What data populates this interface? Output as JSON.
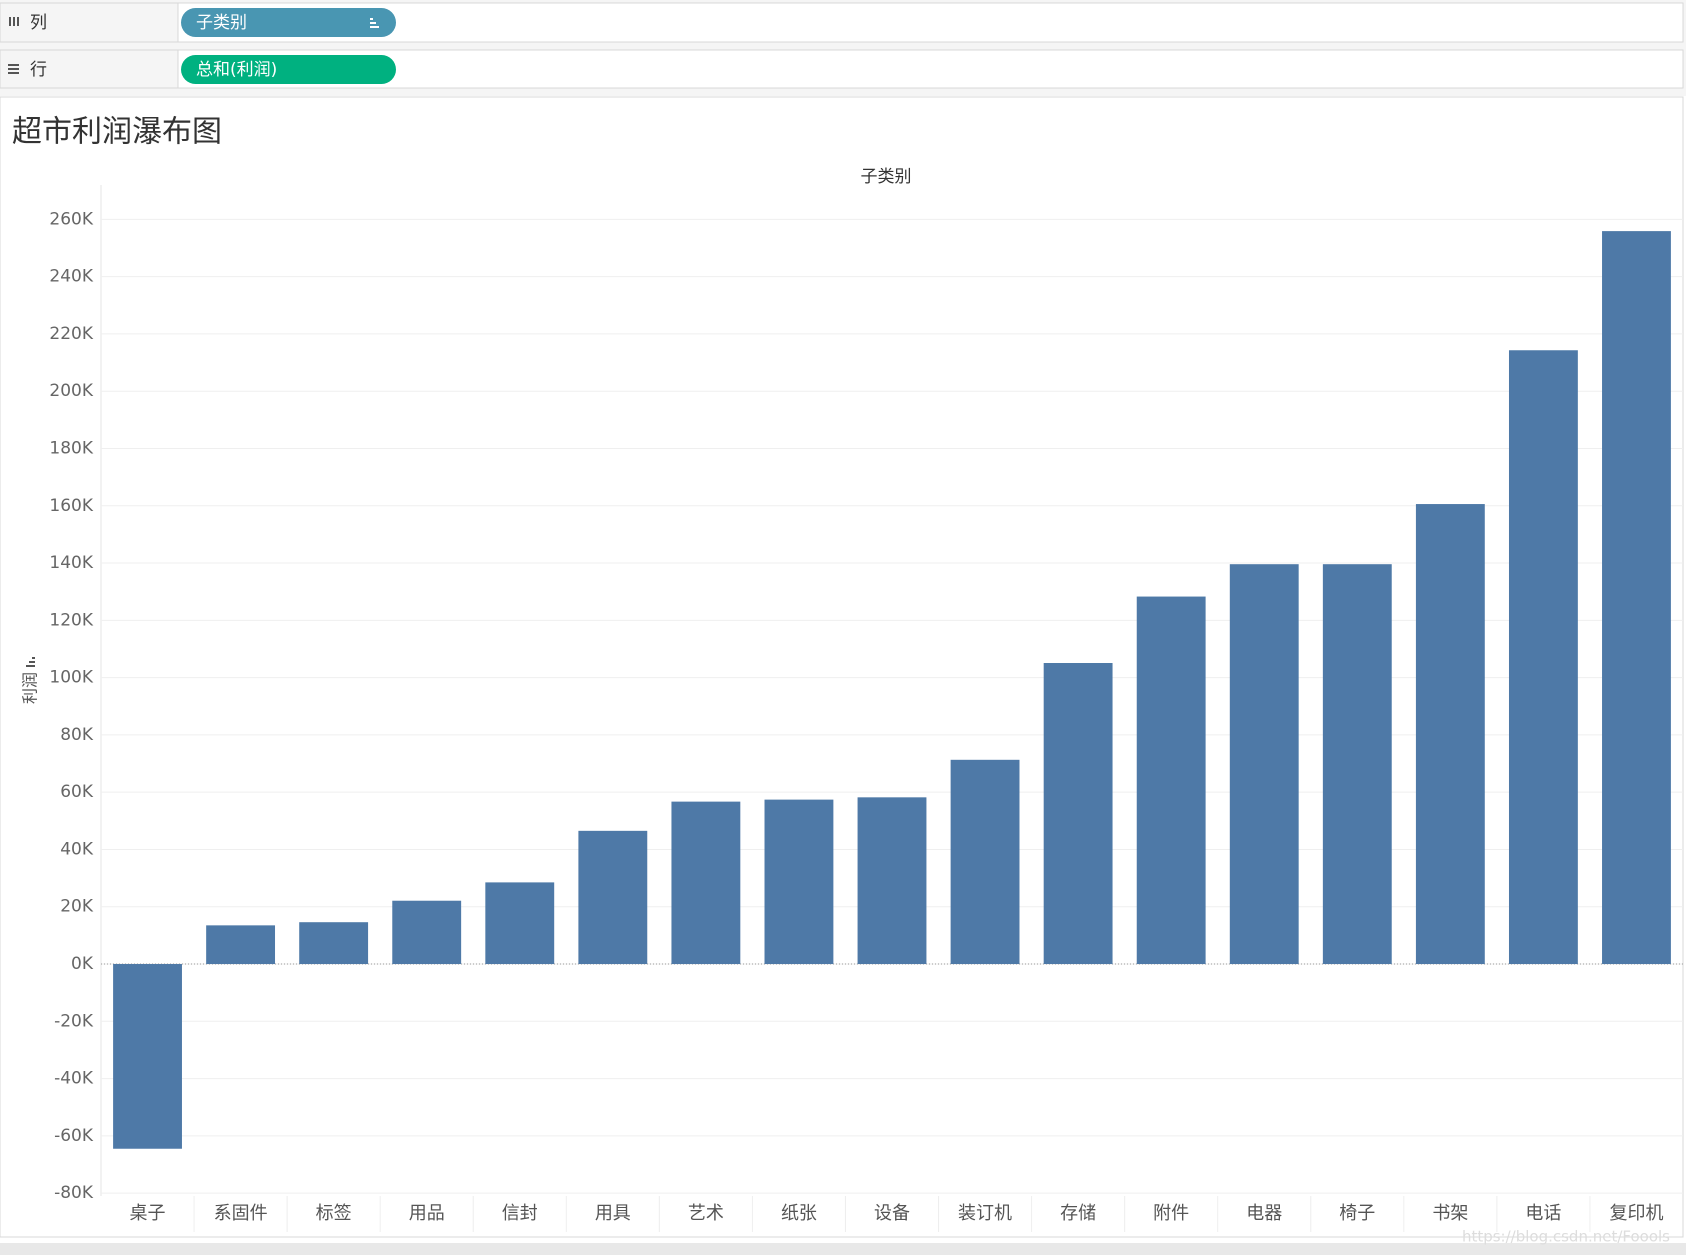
{
  "shelves": {
    "columns": {
      "label": "列",
      "pill": "子类别"
    },
    "rows": {
      "label": "行",
      "pill": "总和(利润)"
    }
  },
  "chart_data": {
    "type": "bar",
    "title": "超市利润瀑布图",
    "x_header": "子类别",
    "y_label": "利润",
    "categories": [
      "桌子",
      "系固件",
      "标签",
      "用品",
      "信封",
      "用具",
      "艺术",
      "纸张",
      "设备",
      "装订机",
      "存储",
      "附件",
      "电器",
      "椅子",
      "书架",
      "电话",
      "复印机"
    ],
    "values": [
      -64500,
      13500,
      14600,
      22100,
      28500,
      46500,
      56700,
      57400,
      58200,
      71300,
      105100,
      128300,
      139600,
      139600,
      160600,
      214300,
      255900
    ],
    "color": "#4e79a7",
    "ylim": [
      -81000,
      272000
    ],
    "yticks": [
      {
        "value": -80000,
        "label": "-80K"
      },
      {
        "value": -60000,
        "label": "-60K"
      },
      {
        "value": -40000,
        "label": "-40K"
      },
      {
        "value": -20000,
        "label": "-20K"
      },
      {
        "value": 0,
        "label": "0K"
      },
      {
        "value": 20000,
        "label": "20K"
      },
      {
        "value": 40000,
        "label": "40K"
      },
      {
        "value": 60000,
        "label": "60K"
      },
      {
        "value": 80000,
        "label": "80K"
      },
      {
        "value": 100000,
        "label": "100K"
      },
      {
        "value": 120000,
        "label": "120K"
      },
      {
        "value": 140000,
        "label": "140K"
      },
      {
        "value": 160000,
        "label": "160K"
      },
      {
        "value": 180000,
        "label": "180K"
      },
      {
        "value": 200000,
        "label": "200K"
      },
      {
        "value": 220000,
        "label": "220K"
      },
      {
        "value": 240000,
        "label": "240K"
      },
      {
        "value": 260000,
        "label": "260K"
      }
    ],
    "grid": true,
    "watermark": "https://blog.csdn.net/Foools"
  }
}
